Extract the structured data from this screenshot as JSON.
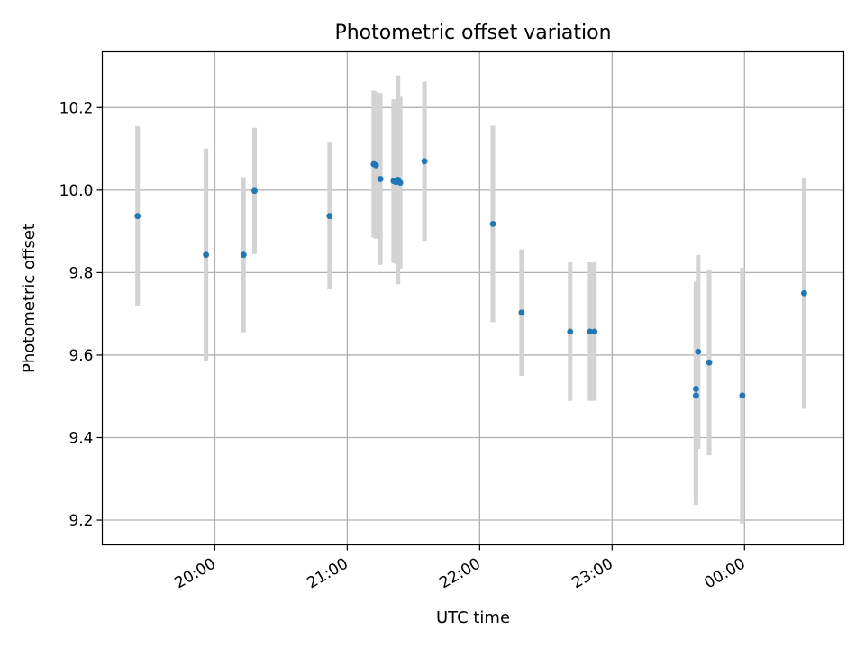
{
  "chart_data": {
    "type": "scatter",
    "title": "Photometric offset variation",
    "xlabel": "UTC time",
    "ylabel": "Photometric offset",
    "xlim": [
      "19:09",
      "00:45"
    ],
    "ylim": [
      9.14,
      10.335
    ],
    "x_ticks": [
      "20:00",
      "21:00",
      "22:00",
      "23:00",
      "00:00"
    ],
    "y_ticks": [
      "9.2",
      "9.4",
      "9.6",
      "9.8",
      "10.0",
      "10.2"
    ],
    "grid": true,
    "point_color": "#1f77b4",
    "errorbar_color": "#d3d3d3",
    "points": [
      {
        "time": "19:25",
        "y": 9.937,
        "err": 0.218
      },
      {
        "time": "19:56",
        "y": 9.843,
        "err": 0.258
      },
      {
        "time": "20:13",
        "y": 9.843,
        "err": 0.188
      },
      {
        "time": "20:18",
        "y": 9.998,
        "err": 0.153
      },
      {
        "time": "20:52",
        "y": 9.937,
        "err": 0.178
      },
      {
        "time": "21:12",
        "y": 10.063,
        "err": 0.178
      },
      {
        "time": "21:13",
        "y": 10.06,
        "err": 0.178
      },
      {
        "time": "21:15",
        "y": 10.027,
        "err": 0.208
      },
      {
        "time": "21:21",
        "y": 10.022,
        "err": 0.198
      },
      {
        "time": "21:22",
        "y": 10.02,
        "err": 0.198
      },
      {
        "time": "21:23",
        "y": 10.025,
        "err": 0.253
      },
      {
        "time": "21:24",
        "y": 10.018,
        "err": 0.208
      },
      {
        "time": "21:35",
        "y": 10.07,
        "err": 0.193
      },
      {
        "time": "22:06",
        "y": 9.918,
        "err": 0.238
      },
      {
        "time": "22:19",
        "y": 9.703,
        "err": 0.153
      },
      {
        "time": "22:41",
        "y": 9.657,
        "err": 0.168
      },
      {
        "time": "22:50",
        "y": 9.657,
        "err": 0.168
      },
      {
        "time": "22:52",
        "y": 9.657,
        "err": 0.168
      },
      {
        "time": "23:38",
        "y": 9.502,
        "err": 0.265
      },
      {
        "time": "23:38",
        "y": 9.518,
        "err": 0.26
      },
      {
        "time": "23:39",
        "y": 9.608,
        "err": 0.235
      },
      {
        "time": "23:44",
        "y": 9.582,
        "err": 0.225
      },
      {
        "time": "23:59",
        "y": 9.502,
        "err": 0.31
      },
      {
        "time": "00:27",
        "y": 9.75,
        "err": 0.28
      }
    ]
  }
}
